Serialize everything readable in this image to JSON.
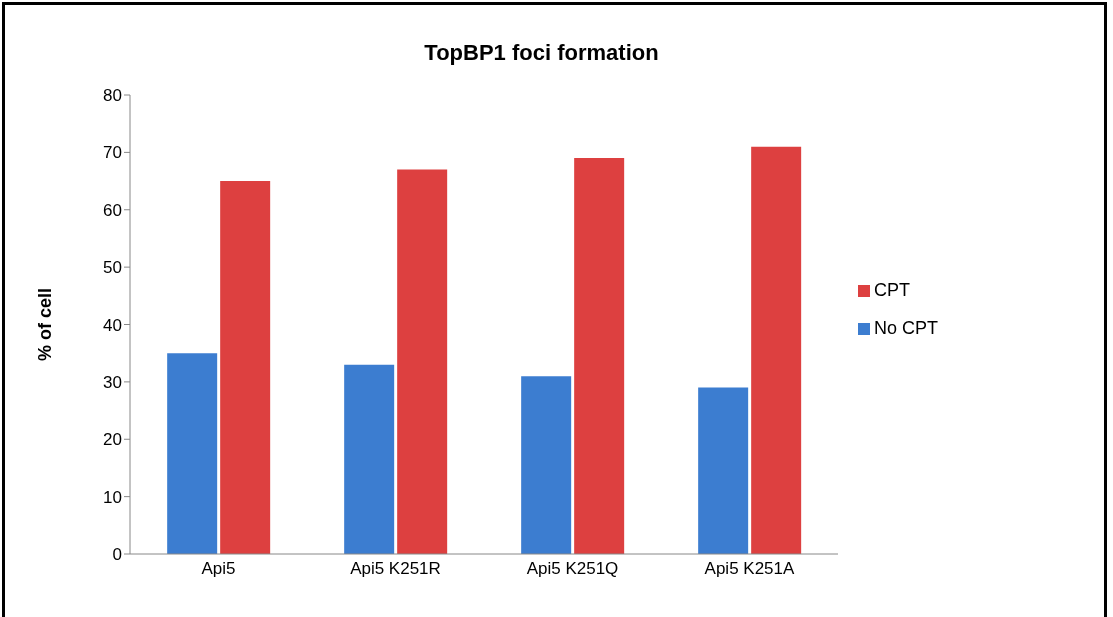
{
  "chart_data": {
    "type": "bar",
    "title": "TopBP1 foci formation",
    "ylabel": "% of cell",
    "categories": [
      "Api5",
      "Api5 K251R",
      "Api5 K251Q",
      "Api5 K251A"
    ],
    "series": [
      {
        "name": "No CPT",
        "color": "#3c7dd0",
        "values": [
          35,
          33,
          31,
          29
        ]
      },
      {
        "name": "CPT",
        "color": "#dd4040",
        "values": [
          65,
          67,
          69,
          71
        ]
      }
    ],
    "ylim": [
      0,
      80
    ],
    "yticks": [
      0,
      10,
      20,
      30,
      40,
      50,
      60,
      70,
      80
    ],
    "legend": "right"
  }
}
